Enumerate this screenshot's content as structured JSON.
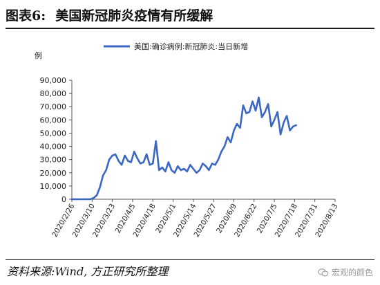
{
  "header": {
    "figure_no": "图表6:",
    "title": "美国新冠肺炎疫情有所缓解"
  },
  "footer": {
    "source": "资料来源:Wind, 方正研究所整理",
    "watermark": "宏观的颜色"
  },
  "colors": {
    "series": "#3a66c4",
    "axis": "#555555",
    "text": "#222222"
  },
  "chart_data": {
    "type": "line",
    "title": "",
    "ylabel": "例",
    "xlabel": "",
    "ylim": [
      0,
      90000
    ],
    "yticks": [
      0,
      10000,
      20000,
      30000,
      40000,
      50000,
      60000,
      70000,
      80000,
      90000
    ],
    "ytick_labels": [
      "0",
      "10,000",
      "20,000",
      "30,000",
      "40,000",
      "50,000",
      "60,000",
      "70,000",
      "80,000",
      "90,000"
    ],
    "xticks": [
      "2020/2/26",
      "2020/3/10",
      "2020/3/23",
      "2020/4/5",
      "2020/4/18",
      "2020/5/1",
      "2020/5/14",
      "2020/5/27",
      "2020/6/9",
      "2020/6/22",
      "2020/7/5",
      "2020/7/18",
      "2020/7/31",
      "2020/8/13"
    ],
    "grid": false,
    "legend_position": "top",
    "series": [
      {
        "name": "美国:确诊病例:新冠肺炎:当日新增",
        "x_start": "2020/2/26",
        "x_step_days": 2,
        "values": [
          0,
          0,
          0,
          0,
          0,
          0,
          100,
          1000,
          3000,
          9000,
          18000,
          22000,
          30000,
          33000,
          34000,
          29000,
          26000,
          33000,
          29000,
          28000,
          36000,
          31000,
          27000,
          28000,
          34000,
          26000,
          27000,
          44000,
          22000,
          24000,
          21000,
          28000,
          22000,
          20000,
          25000,
          22000,
          23000,
          21000,
          26000,
          23000,
          20000,
          22000,
          27000,
          25000,
          22000,
          27000,
          26000,
          30000,
          36000,
          40000,
          47000,
          43000,
          52000,
          57000,
          54000,
          71000,
          65000,
          66000,
          74000,
          67000,
          77000,
          62000,
          66000,
          72000,
          55000,
          60000,
          66000,
          49000,
          58000,
          63000,
          52000,
          55000,
          56000
        ]
      }
    ]
  }
}
